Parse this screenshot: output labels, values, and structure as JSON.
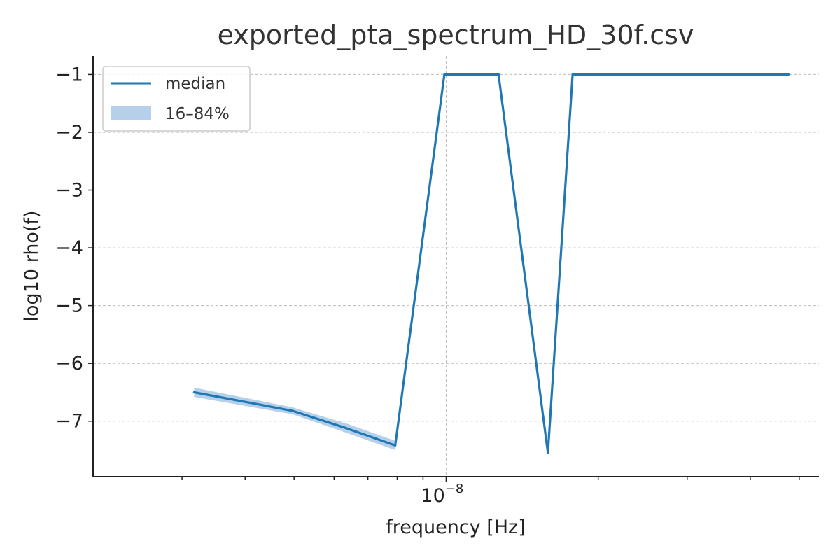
{
  "chart_data": {
    "type": "line",
    "title": "exported_pta_spectrum_HD_30f.csv",
    "xlabel": "frequency [Hz]",
    "ylabel": "log10 rho(f)",
    "xscale": "log",
    "xlim": [
      2e-09,
      5.47e-08
    ],
    "ylim": [
      -7.96,
      -0.68
    ],
    "grid": true,
    "legend_position": "top-left",
    "y_ticks": [
      -1,
      -2,
      -3,
      -4,
      -5,
      -6,
      -7
    ],
    "y_tick_labels": [
      "−1",
      "−2",
      "−3",
      "−4",
      "−5",
      "−6",
      "−7"
    ],
    "x_major_tick": {
      "value": 1e-08,
      "base": "10",
      "exponent": "−8"
    },
    "x_minor_ticks": [
      3e-09,
      4e-09,
      5e-09,
      6e-09,
      7e-09,
      8e-09,
      9e-09,
      2e-08,
      3e-08,
      4e-08,
      5e-08
    ],
    "x": [
      3.17e-09,
      4.96e-09,
      6.34e-09,
      7.93e-09,
      9.92e-09,
      1.27e-08,
      1.59e-08,
      1.78e-08,
      2.22e-08,
      2.86e-08,
      3.49e-08,
      4.13e-08,
      4.76e-08
    ],
    "series": [
      {
        "name": "median",
        "color": "#1f77b4",
        "values": [
          -6.5,
          -6.82,
          -7.12,
          -7.42,
          -1.0,
          -1.0,
          -7.55,
          -1.0,
          -1.0,
          -1.0,
          -1.0,
          -1.0,
          -1.0
        ]
      }
    ],
    "band": {
      "name": "16–84%",
      "color": "#a8c8e4",
      "lower": [
        -6.58,
        -6.88,
        -7.2,
        -7.5,
        -1.0,
        -1.0,
        -7.55,
        -1.0,
        -1.0,
        -1.0,
        -1.0,
        -1.0,
        -1.0
      ],
      "upper": [
        -6.42,
        -6.76,
        -7.04,
        -7.34,
        -1.0,
        -1.0,
        -7.55,
        -1.0,
        -1.0,
        -1.0,
        -1.0,
        -1.0,
        -1.0
      ],
      "visible_points": 4
    }
  }
}
